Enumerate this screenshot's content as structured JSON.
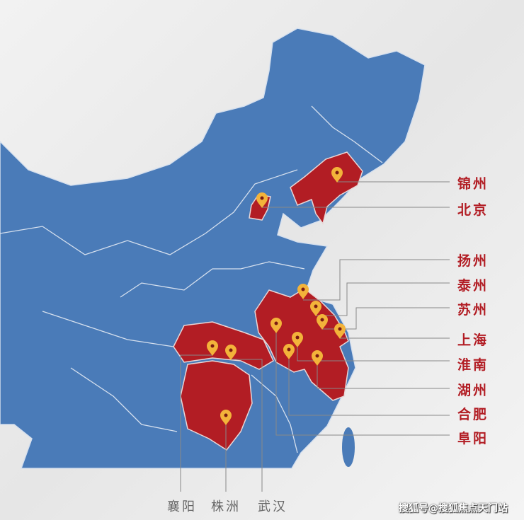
{
  "colors": {
    "land": "#4a7bb8",
    "highlight": "#b21d24",
    "pin": "#f3b33a",
    "label": "#b21d24",
    "background": "#ededed",
    "border": "#cfdcec"
  },
  "right_labels": [
    "锦州",
    "北京",
    "扬州",
    "泰州",
    "苏州",
    "上海",
    "淮南",
    "湖州",
    "合肥",
    "阜阳"
  ],
  "bottom_labels": [
    "襄阳",
    "株洲",
    "武汉"
  ],
  "watermark": "搜狐号@搜狐焦点天门站"
}
